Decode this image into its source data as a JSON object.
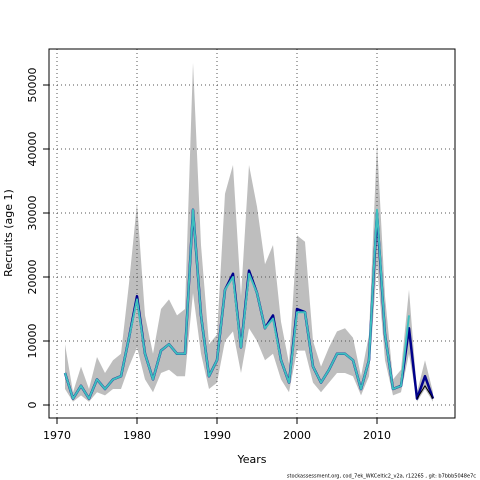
{
  "chart_data": {
    "type": "line",
    "xlabel": "Years",
    "ylabel": "Recruits (age 1)",
    "footer": "stockassessment.org, cod_7ek_WKCeltic2_v2a, r12265 , git: b7bbb5048e7c",
    "x": [
      1971,
      1972,
      1973,
      1974,
      1975,
      1976,
      1977,
      1978,
      1979,
      1980,
      1981,
      1982,
      1983,
      1984,
      1985,
      1986,
      1987,
      1988,
      1989,
      1990,
      1991,
      1992,
      1993,
      1994,
      1995,
      1996,
      1997,
      1998,
      1999,
      2000,
      2001,
      2002,
      2003,
      2004,
      2005,
      2006,
      2007,
      2008,
      2009,
      2010,
      2011,
      2012,
      2013,
      2014,
      2015,
      2016,
      2017
    ],
    "band": {
      "color": "#bebebe",
      "upper": [
        9500,
        2000,
        6000,
        2500,
        7500,
        5000,
        7000,
        8000,
        19000,
        31500,
        14000,
        8000,
        15000,
        16500,
        14000,
        15000,
        53500,
        25000,
        9500,
        11000,
        33000,
        37500,
        17000,
        37500,
        31000,
        22000,
        25000,
        13000,
        6500,
        26500,
        25500,
        10000,
        6000,
        9000,
        11500,
        12000,
        10500,
        4500,
        11000,
        41000,
        17000,
        4000,
        5500,
        18000,
        2000,
        7000,
        2000
      ],
      "lower": [
        2500,
        500,
        1500,
        500,
        2000,
        1500,
        2500,
        2500,
        6000,
        9000,
        4000,
        2000,
        5000,
        5500,
        4500,
        4500,
        17500,
        8000,
        2500,
        3500,
        10000,
        11500,
        5000,
        12000,
        10000,
        7000,
        8000,
        4000,
        2000,
        8500,
        8500,
        3500,
        2000,
        3500,
        5000,
        5000,
        4500,
        1500,
        4500,
        22000,
        7000,
        1500,
        2000,
        8000,
        500,
        2500,
        500
      ]
    },
    "series": [
      {
        "color": "#00008b",
        "width": 2.5,
        "values": [
          5000,
          1000,
          3000,
          1000,
          4000,
          2500,
          4000,
          4500,
          10500,
          17000,
          8000,
          4000,
          8500,
          9500,
          8000,
          8000,
          30500,
          14000,
          4500,
          7000,
          18000,
          20500,
          9000,
          21000,
          17500,
          12000,
          14000,
          7000,
          3500,
          15000,
          14500,
          6000,
          3500,
          5500,
          8000,
          8000,
          7000,
          2500,
          7000,
          30000,
          11000,
          2500,
          3000,
          12000,
          1000,
          4500,
          1000
        ]
      },
      {
        "color": "#3ebfbf",
        "width": 2,
        "values": [
          5000,
          1000,
          3000,
          1000,
          4000,
          2500,
          4000,
          4500,
          10500,
          16500,
          8000,
          4000,
          8500,
          9500,
          8000,
          8000,
          30500,
          14000,
          4500,
          7000,
          18000,
          20000,
          9000,
          20500,
          17500,
          12000,
          13500,
          7000,
          3500,
          14500,
          14500,
          6000,
          3500,
          5500,
          8000,
          8000,
          7000,
          2500,
          7000,
          30500,
          11000,
          2500,
          3000,
          14000,
          null,
          null,
          null
        ]
      },
      {
        "color": "#000000",
        "width": 1,
        "values": [
          null,
          null,
          null,
          null,
          null,
          null,
          null,
          null,
          null,
          null,
          null,
          null,
          null,
          null,
          null,
          null,
          null,
          null,
          null,
          null,
          null,
          null,
          null,
          null,
          null,
          null,
          null,
          null,
          null,
          null,
          null,
          null,
          null,
          null,
          null,
          null,
          null,
          null,
          null,
          null,
          null,
          null,
          null,
          null,
          1000,
          3000,
          1000
        ]
      }
    ],
    "xlim": [
      1969,
      2019.75
    ],
    "ylim": [
      -2031,
      55625
    ],
    "xticks": [
      1970,
      1980,
      1990,
      2000,
      2010
    ],
    "yticks": [
      0,
      10000,
      20000,
      30000,
      40000,
      50000
    ],
    "grid": true
  }
}
